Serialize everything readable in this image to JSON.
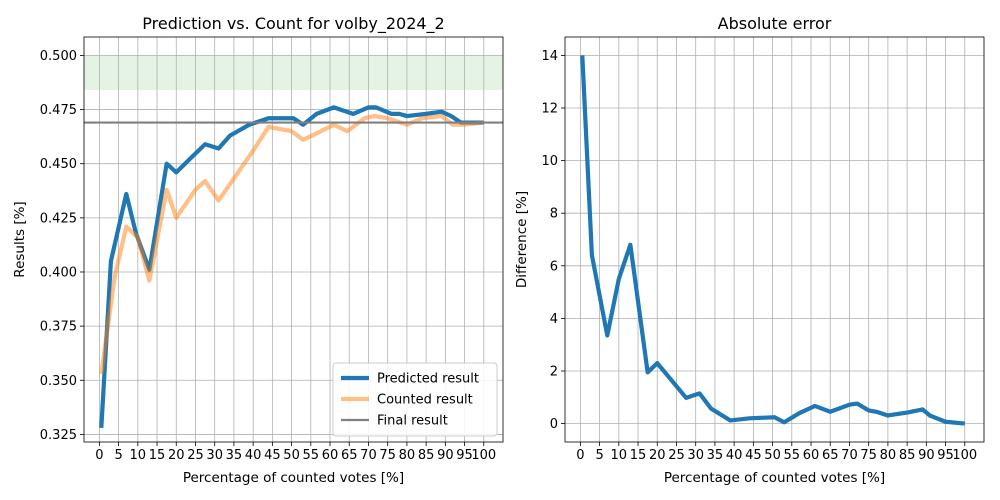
{
  "chart_data": [
    {
      "type": "line",
      "title": "Prediction vs. Count for volby_2024_2",
      "xlabel": "Percentage of counted votes [%]",
      "ylabel": "Results [%]",
      "xlim": [
        -4.0,
        105.0
      ],
      "ylim": [
        0.3215,
        0.5085
      ],
      "xticks": [
        0,
        5,
        10,
        15,
        20,
        25,
        30,
        35,
        40,
        45,
        50,
        55,
        60,
        65,
        70,
        75,
        80,
        85,
        90,
        95,
        100
      ],
      "yticks": [
        0.325,
        0.35,
        0.375,
        0.4,
        0.425,
        0.45,
        0.475,
        0.5
      ],
      "ytick_labels": [
        "0.325",
        "0.350",
        "0.375",
        "0.400",
        "0.425",
        "0.450",
        "0.475",
        "0.500"
      ],
      "grid": true,
      "band": {
        "y0": 0.484,
        "y1": 0.5,
        "color": "#2ca02c",
        "opacity": 0.12
      },
      "legend_position": "lower-right",
      "series": [
        {
          "name": "Predicted result",
          "color": "#1f77b4",
          "x": [
            0.5,
            3,
            7,
            9.5,
            13,
            17.5,
            20,
            24,
            27.5,
            31,
            34,
            39,
            44,
            50.5,
            53,
            56.5,
            61,
            66,
            70,
            72,
            76,
            78,
            80,
            85,
            89,
            91.5,
            94,
            97,
            100
          ],
          "y": [
            0.328,
            0.405,
            0.436,
            0.418,
            0.401,
            0.45,
            0.446,
            0.453,
            0.459,
            0.457,
            0.463,
            0.468,
            0.471,
            0.471,
            0.468,
            0.473,
            0.476,
            0.473,
            0.476,
            0.476,
            0.473,
            0.473,
            0.472,
            0.473,
            0.474,
            0.472,
            0.469,
            0.469,
            0.469
          ]
        },
        {
          "name": "Counted result",
          "color": "#ff7f0e",
          "opacity": 0.5,
          "x": [
            0.5,
            4,
            7,
            10,
            13,
            17.5,
            20,
            25,
            27.5,
            31,
            40,
            44,
            50,
            53,
            56.5,
            61,
            64.5,
            69,
            71.5,
            75,
            80,
            84,
            89,
            92,
            95,
            100
          ],
          "y": [
            0.353,
            0.398,
            0.421,
            0.416,
            0.396,
            0.438,
            0.425,
            0.438,
            0.442,
            0.433,
            0.456,
            0.467,
            0.465,
            0.461,
            0.464,
            0.468,
            0.465,
            0.471,
            0.472,
            0.471,
            0.468,
            0.471,
            0.472,
            0.468,
            0.468,
            0.469
          ]
        },
        {
          "name": "Final result",
          "color": "#808080",
          "opacity": 1,
          "x": [
            -4.0,
            105.0
          ],
          "y": [
            0.469,
            0.469
          ]
        }
      ]
    },
    {
      "type": "line",
      "title": "Absolute error",
      "xlabel": "Percentage of counted votes [%]",
      "ylabel": "Difference [%]",
      "xlim": [
        -4.0,
        105.0
      ],
      "ylim": [
        -0.7,
        14.7
      ],
      "xticks": [
        0,
        5,
        10,
        15,
        20,
        25,
        30,
        35,
        40,
        45,
        50,
        55,
        60,
        65,
        70,
        75,
        80,
        85,
        90,
        95,
        100
      ],
      "yticks": [
        0,
        2,
        4,
        6,
        8,
        10,
        12,
        14
      ],
      "ytick_labels": [
        "0",
        "2",
        "4",
        "6",
        "8",
        "10",
        "12",
        "14"
      ],
      "grid": true,
      "series": [
        {
          "color": "#1f77b4",
          "x": [
            0.5,
            3,
            7,
            10,
            13,
            17.5,
            20,
            27.5,
            31,
            34,
            39,
            44,
            50.5,
            53,
            57,
            61,
            65,
            70,
            72,
            75,
            77,
            80,
            85,
            89,
            91,
            95,
            100
          ],
          "y": [
            14.0,
            6.4,
            3.35,
            5.5,
            6.8,
            1.95,
            2.3,
            0.98,
            1.15,
            0.57,
            0.12,
            0.2,
            0.24,
            0.05,
            0.4,
            0.67,
            0.45,
            0.72,
            0.76,
            0.5,
            0.45,
            0.31,
            0.42,
            0.54,
            0.3,
            0.07,
            0.0
          ]
        }
      ]
    }
  ]
}
